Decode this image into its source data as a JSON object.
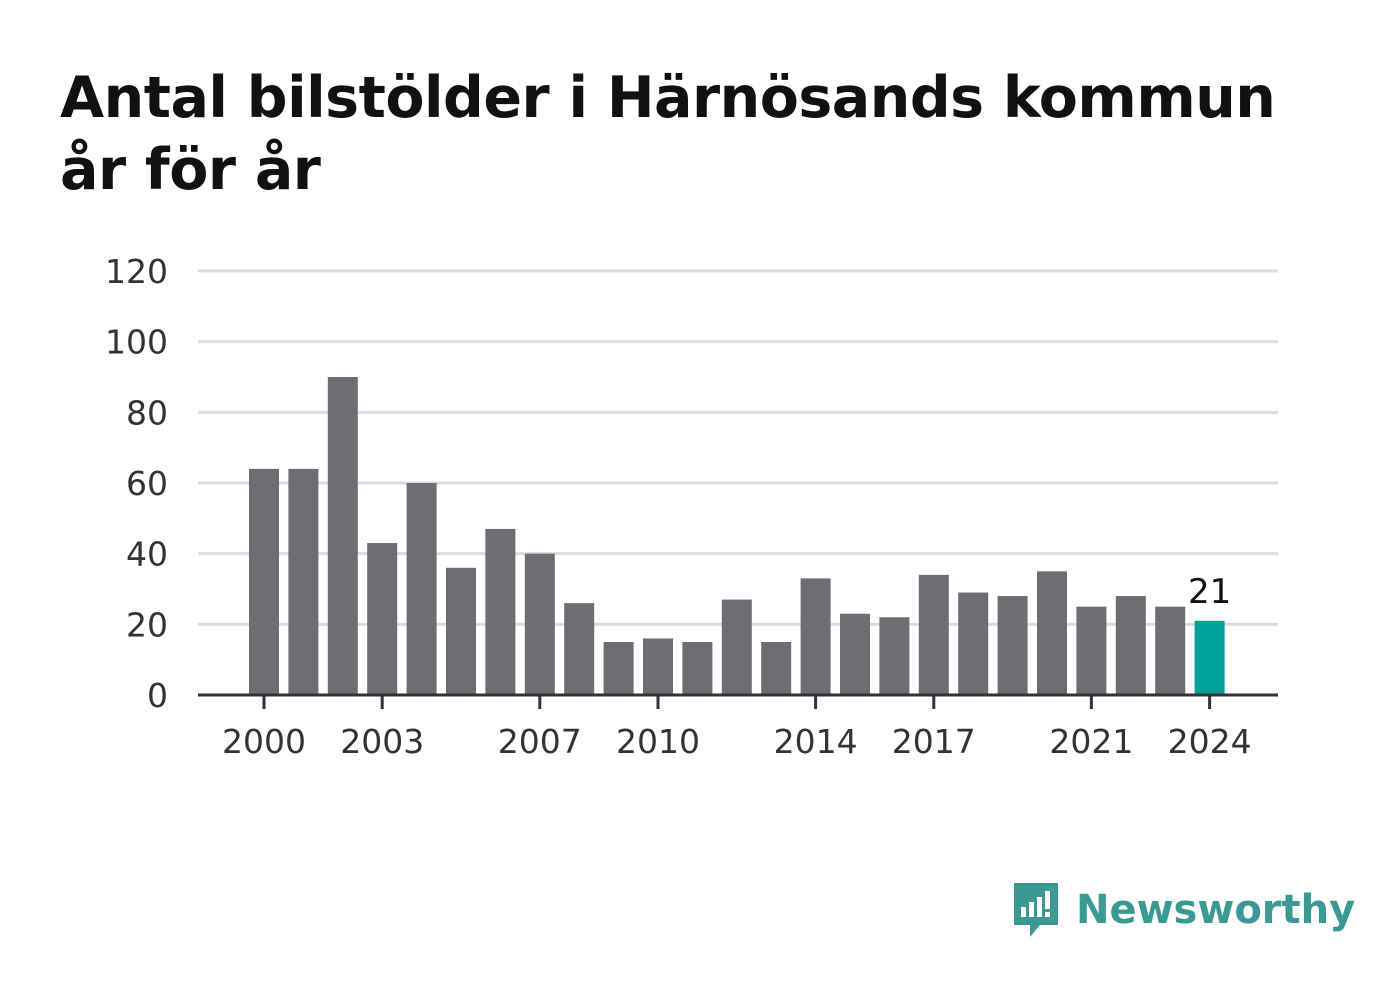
{
  "title": "Antal bilstölder i Härnösands kommun år för år",
  "brand": {
    "name": "Newsworthy",
    "icon": "newsworthy-logo-icon",
    "color": "#3a9a93"
  },
  "colors": {
    "bar": "#6e6d73",
    "highlight": "#00a39a",
    "grid": "#dcdcdc",
    "axis": "#333333"
  },
  "chart_data": {
    "type": "bar",
    "title": "Antal bilstölder i Härnösands kommun år för år",
    "categories": [
      2000,
      2001,
      2002,
      2003,
      2004,
      2005,
      2006,
      2007,
      2008,
      2009,
      2010,
      2011,
      2012,
      2013,
      2014,
      2015,
      2016,
      2017,
      2018,
      2019,
      2020,
      2021,
      2022,
      2023,
      2024
    ],
    "values": [
      64,
      64,
      90,
      43,
      60,
      36,
      47,
      40,
      26,
      15,
      16,
      15,
      27,
      15,
      33,
      23,
      22,
      34,
      29,
      28,
      35,
      25,
      28,
      25,
      21
    ],
    "x_tick_labels": [
      "2000",
      "2003",
      "2007",
      "2010",
      "2014",
      "2017",
      "2021",
      "2024"
    ],
    "y_ticks": [
      0,
      20,
      40,
      60,
      80,
      100,
      120
    ],
    "ylim": [
      0,
      120
    ],
    "xlabel": "",
    "ylabel": "",
    "grid": true,
    "legend": "none",
    "highlight_category": 2024,
    "annotations": [
      {
        "category": 2024,
        "text": "21"
      }
    ]
  }
}
